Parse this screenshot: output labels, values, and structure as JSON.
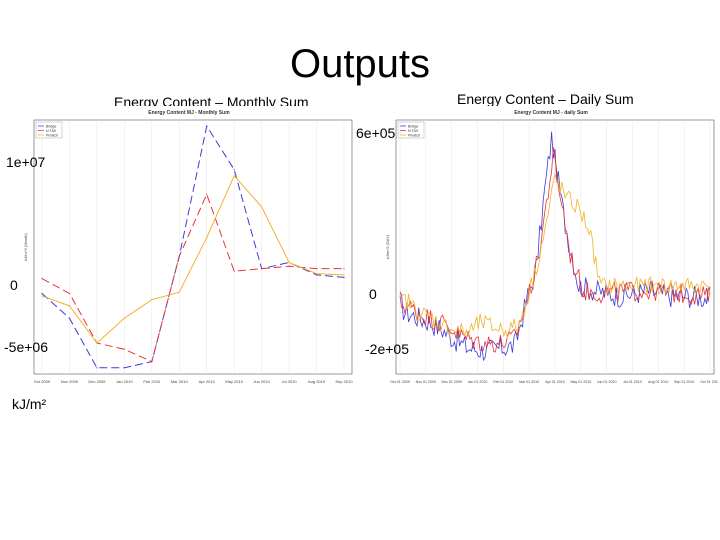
{
  "slide": {
    "title": "Outputs",
    "unit_label": "kJ/m²"
  },
  "colors": {
    "blue": "#3b3bd6",
    "red": "#e8333a",
    "orange": "#f0b429",
    "axis": "#555555",
    "grid": "#e6e6e6"
  },
  "chart_data": [
    {
      "type": "line",
      "caption": "Energy Content – Monthly Sum",
      "title": "Energy Content MJ - Monthly Sum",
      "overlay_ticks": [
        "1e+07",
        "0",
        "-5e+06"
      ],
      "ylabel": "kJ/m^2 (Month)",
      "legend": [
        "Bridge",
        "N TAX",
        "Pmatch"
      ],
      "legend_position": "top-left",
      "categories": [
        "Oct 2009",
        "Nov 2009",
        "Dec 2009",
        "Jan 2010",
        "Feb 2010",
        "Mar 2010",
        "Apr 2010",
        "May 2010",
        "Jun 2010",
        "Jul 2010",
        "Aug 2010",
        "Sep 2010"
      ],
      "ylim": [
        -6500000,
        14000000
      ],
      "series": [
        {
          "name": "Bridge",
          "color": "#3b3bd6",
          "dash": "8,4",
          "values": [
            0,
            -2000000,
            -6000000,
            -6000000,
            -5500000,
            3000000,
            13500000,
            10000000,
            2000000,
            2500000,
            1500000,
            1300000
          ]
        },
        {
          "name": "N TAX",
          "color": "#e8333a",
          "dash": "8,4",
          "values": [
            1200000,
            0,
            -4000000,
            -4500000,
            -5500000,
            3000000,
            8000000,
            1800000,
            2000000,
            2200000,
            2000000,
            2000000
          ]
        },
        {
          "name": "Pmatch",
          "color": "#f0b429",
          "dash": "",
          "values": [
            -200000,
            -1000000,
            -4000000,
            -2000000,
            -500000,
            100000,
            4500000,
            9500000,
            7000000,
            2500000,
            1600000,
            1500000
          ]
        }
      ]
    },
    {
      "type": "line",
      "caption": "Energy Content – Daily Sum",
      "title": "Energy Content MJ - daily Sum",
      "overlay_ticks": [
        "6e+05",
        "0",
        "-2e+05"
      ],
      "ylabel": "kJ/m^2 (DAY)",
      "legend": [
        "Bridge",
        "N TAX",
        "Pmatch"
      ],
      "legend_position": "top-left",
      "date_range": [
        "2009-10-01",
        "2010-09-30"
      ],
      "ticks": [
        "Oct 01 2009",
        "Nov 01 2009",
        "Dec 01 2009",
        "Jan 01 2010",
        "Feb 01 2010",
        "Mar 01 2010",
        "Apr 01 2010",
        "May 01 2010",
        "Jun 01 2010",
        "Jul 01 2010",
        "Aug 01 2010",
        "Sep 01 2010",
        "Oct 01 2010"
      ],
      "ylim": [
        -260000,
        720000
      ],
      "series": [
        {
          "name": "Bridge",
          "color": "#3b3bd6",
          "anchors": [
            [
              0,
              20000
            ],
            [
              5,
              -20000
            ],
            [
              20,
              -40000
            ],
            [
              35,
              -60000
            ],
            [
              50,
              -90000
            ],
            [
              65,
              -130000
            ],
            [
              80,
              -160000
            ],
            [
              100,
              -170000
            ],
            [
              120,
              -160000
            ],
            [
              135,
              -150000
            ],
            [
              150,
              40000
            ],
            [
              160,
              150000
            ],
            [
              170,
              450000
            ],
            [
              178,
              650000
            ],
            [
              185,
              500000
            ],
            [
              195,
              300000
            ],
            [
              210,
              80000
            ],
            [
              230,
              60000
            ],
            [
              260,
              40000
            ],
            [
              290,
              60000
            ],
            [
              320,
              40000
            ],
            [
              345,
              40000
            ],
            [
              364,
              30000
            ]
          ],
          "amplitude": 45000
        },
        {
          "name": "N TAX",
          "color": "#e8333a",
          "anchors": [
            [
              0,
              10000
            ],
            [
              10,
              0
            ],
            [
              25,
              -30000
            ],
            [
              40,
              -50000
            ],
            [
              55,
              -70000
            ],
            [
              70,
              -110000
            ],
            [
              85,
              -130000
            ],
            [
              100,
              -140000
            ],
            [
              120,
              -140000
            ],
            [
              135,
              -120000
            ],
            [
              150,
              30000
            ],
            [
              162,
              180000
            ],
            [
              172,
              400000
            ],
            [
              180,
              580000
            ],
            [
              190,
              400000
            ],
            [
              200,
              200000
            ],
            [
              215,
              60000
            ],
            [
              240,
              50000
            ],
            [
              270,
              60000
            ],
            [
              300,
              60000
            ],
            [
              330,
              50000
            ],
            [
              364,
              40000
            ]
          ],
          "amplitude": 40000
        },
        {
          "name": "Pmatch",
          "color": "#f0b429",
          "anchors": [
            [
              0,
              30000
            ],
            [
              10,
              20000
            ],
            [
              20,
              -20000
            ],
            [
              35,
              -40000
            ],
            [
              50,
              -70000
            ],
            [
              65,
              -90000
            ],
            [
              80,
              -100000
            ],
            [
              95,
              -60000
            ],
            [
              110,
              -80000
            ],
            [
              125,
              -90000
            ],
            [
              140,
              -70000
            ],
            [
              150,
              40000
            ],
            [
              160,
              150000
            ],
            [
              172,
              320000
            ],
            [
              182,
              500000
            ],
            [
              195,
              420000
            ],
            [
              210,
              380000
            ],
            [
              222,
              300000
            ],
            [
              235,
              80000
            ],
            [
              260,
              80000
            ],
            [
              290,
              80000
            ],
            [
              320,
              80000
            ],
            [
              364,
              80000
            ]
          ],
          "amplitude": 35000
        }
      ]
    }
  ]
}
